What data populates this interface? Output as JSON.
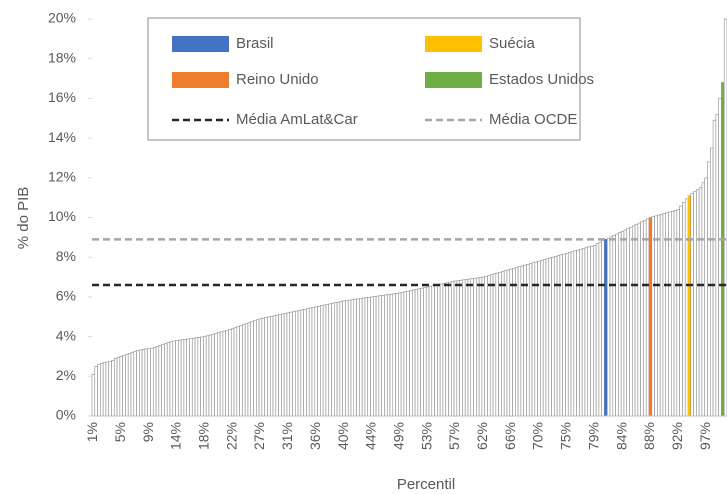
{
  "chart_data": {
    "type": "bar",
    "y_label": "% do PIB",
    "x_label": "Percentil",
    "ylim": [
      0,
      20
    ],
    "yticks": [
      {
        "value": 0,
        "label": "0%"
      },
      {
        "value": 2,
        "label": "2%"
      },
      {
        "value": 4,
        "label": "4%"
      },
      {
        "value": 6,
        "label": "6%"
      },
      {
        "value": 8,
        "label": "8%"
      },
      {
        "value": 10,
        "label": "10%"
      },
      {
        "value": 12,
        "label": "12%"
      },
      {
        "value": 14,
        "label": "14%"
      },
      {
        "value": 16,
        "label": "16%"
      },
      {
        "value": 18,
        "label": "18%"
      },
      {
        "value": 20,
        "label": "20%"
      }
    ],
    "bar_color": "#ffffff",
    "bar_edge": "#8c8c8c",
    "categories": [
      "1%",
      null,
      null,
      null,
      null,
      null,
      null,
      null,
      null,
      null,
      "5%",
      null,
      null,
      null,
      null,
      null,
      null,
      null,
      null,
      null,
      "9%",
      null,
      null,
      null,
      null,
      null,
      null,
      null,
      null,
      null,
      "14%",
      null,
      null,
      null,
      null,
      null,
      null,
      null,
      null,
      null,
      "18%",
      null,
      null,
      null,
      null,
      null,
      null,
      null,
      null,
      null,
      "22%",
      null,
      null,
      null,
      null,
      null,
      null,
      null,
      null,
      null,
      "27%",
      null,
      null,
      null,
      null,
      null,
      null,
      null,
      null,
      null,
      "31%",
      null,
      null,
      null,
      null,
      null,
      null,
      null,
      null,
      null,
      "36%",
      null,
      null,
      null,
      null,
      null,
      null,
      null,
      null,
      null,
      "40%",
      null,
      null,
      null,
      null,
      null,
      null,
      null,
      null,
      null,
      "44%",
      null,
      null,
      null,
      null,
      null,
      null,
      null,
      null,
      null,
      "49%",
      null,
      null,
      null,
      null,
      null,
      null,
      null,
      null,
      null,
      "53%",
      null,
      null,
      null,
      null,
      null,
      null,
      null,
      null,
      null,
      "57%",
      null,
      null,
      null,
      null,
      null,
      null,
      null,
      null,
      null,
      "62%",
      null,
      null,
      null,
      null,
      null,
      null,
      null,
      null,
      null,
      "66%",
      null,
      null,
      null,
      null,
      null,
      null,
      null,
      null,
      null,
      "70%",
      null,
      null,
      null,
      null,
      null,
      null,
      null,
      null,
      null,
      "75%",
      null,
      null,
      null,
      null,
      null,
      null,
      null,
      null,
      null,
      "79%",
      null,
      null,
      null,
      null,
      null,
      null,
      null,
      null,
      null,
      "84%",
      null,
      null,
      null,
      null,
      null,
      null,
      null,
      null,
      null,
      "88%",
      null,
      null,
      null,
      null,
      null,
      null,
      null,
      null,
      null,
      "92%",
      null,
      null,
      null,
      null,
      null,
      null,
      null,
      null,
      null,
      "97%",
      null,
      null,
      null,
      null,
      null,
      null,
      null
    ],
    "values": [
      2.1,
      2.5,
      2.6,
      2.65,
      2.7,
      2.72,
      2.75,
      2.8,
      2.9,
      2.95,
      3.0,
      3.05,
      3.1,
      3.15,
      3.2,
      3.25,
      3.3,
      3.33,
      3.36,
      3.38,
      3.4,
      3.42,
      3.45,
      3.5,
      3.55,
      3.6,
      3.65,
      3.7,
      3.75,
      3.78,
      3.8,
      3.82,
      3.84,
      3.86,
      3.88,
      3.9,
      3.92,
      3.94,
      3.96,
      3.98,
      4.0,
      4.04,
      4.08,
      4.12,
      4.16,
      4.2,
      4.24,
      4.28,
      4.32,
      4.36,
      4.4,
      4.45,
      4.5,
      4.55,
      4.6,
      4.65,
      4.7,
      4.75,
      4.8,
      4.85,
      4.9,
      4.93,
      4.96,
      4.99,
      5.02,
      5.05,
      5.08,
      5.11,
      5.14,
      5.17,
      5.2,
      5.23,
      5.26,
      5.29,
      5.32,
      5.35,
      5.38,
      5.41,
      5.44,
      5.47,
      5.5,
      5.53,
      5.56,
      5.59,
      5.62,
      5.65,
      5.68,
      5.71,
      5.74,
      5.77,
      5.8,
      5.82,
      5.84,
      5.86,
      5.88,
      5.9,
      5.92,
      5.94,
      5.96,
      5.98,
      6.0,
      6.02,
      6.04,
      6.06,
      6.08,
      6.1,
      6.12,
      6.14,
      6.16,
      6.18,
      6.2,
      6.23,
      6.26,
      6.29,
      6.32,
      6.35,
      6.38,
      6.41,
      6.44,
      6.47,
      6.5,
      6.53,
      6.56,
      6.59,
      6.62,
      6.65,
      6.68,
      6.71,
      6.74,
      6.77,
      6.8,
      6.82,
      6.84,
      6.86,
      6.88,
      6.9,
      6.92,
      6.94,
      6.96,
      6.98,
      7.0,
      7.04,
      7.08,
      7.12,
      7.16,
      7.2,
      7.24,
      7.28,
      7.32,
      7.36,
      7.4,
      7.44,
      7.48,
      7.52,
      7.56,
      7.6,
      7.64,
      7.68,
      7.72,
      7.76,
      7.8,
      7.84,
      7.88,
      7.92,
      7.96,
      8.0,
      8.04,
      8.08,
      8.12,
      8.16,
      8.2,
      8.24,
      8.28,
      8.32,
      8.36,
      8.4,
      8.44,
      8.48,
      8.52,
      8.56,
      8.6,
      8.68,
      8.76,
      8.84,
      8.9,
      8.96,
      9.03,
      9.1,
      9.17,
      9.24,
      9.3,
      9.37,
      9.44,
      9.51,
      9.58,
      9.65,
      9.72,
      9.79,
      9.86,
      9.93,
      10.0,
      10.04,
      10.08,
      10.12,
      10.16,
      10.2,
      10.24,
      10.28,
      10.32,
      10.36,
      10.4,
      10.58,
      10.76,
      10.94,
      11.1,
      11.2,
      11.3,
      11.4,
      11.5,
      11.75,
      12.0,
      12.8,
      13.5,
      14.9,
      15.2,
      16.0,
      16.8,
      20.0
    ],
    "highlights": [
      {
        "name": "Brasil",
        "color": "#4472c4",
        "index": 184
      },
      {
        "name": "Suécia",
        "color": "#ffc000",
        "index": 214
      },
      {
        "name": "Reino Unido",
        "color": "#ed7d31",
        "index": 200
      },
      {
        "name": "Estados Unidos",
        "color": "#70ad47",
        "index": 226
      }
    ],
    "hlines": [
      {
        "name": "Média AmLat&Car",
        "value": 6.6,
        "color": "#262626"
      },
      {
        "name": "Média OCDE",
        "value": 8.9,
        "color": "#a6a6a6"
      }
    ]
  }
}
